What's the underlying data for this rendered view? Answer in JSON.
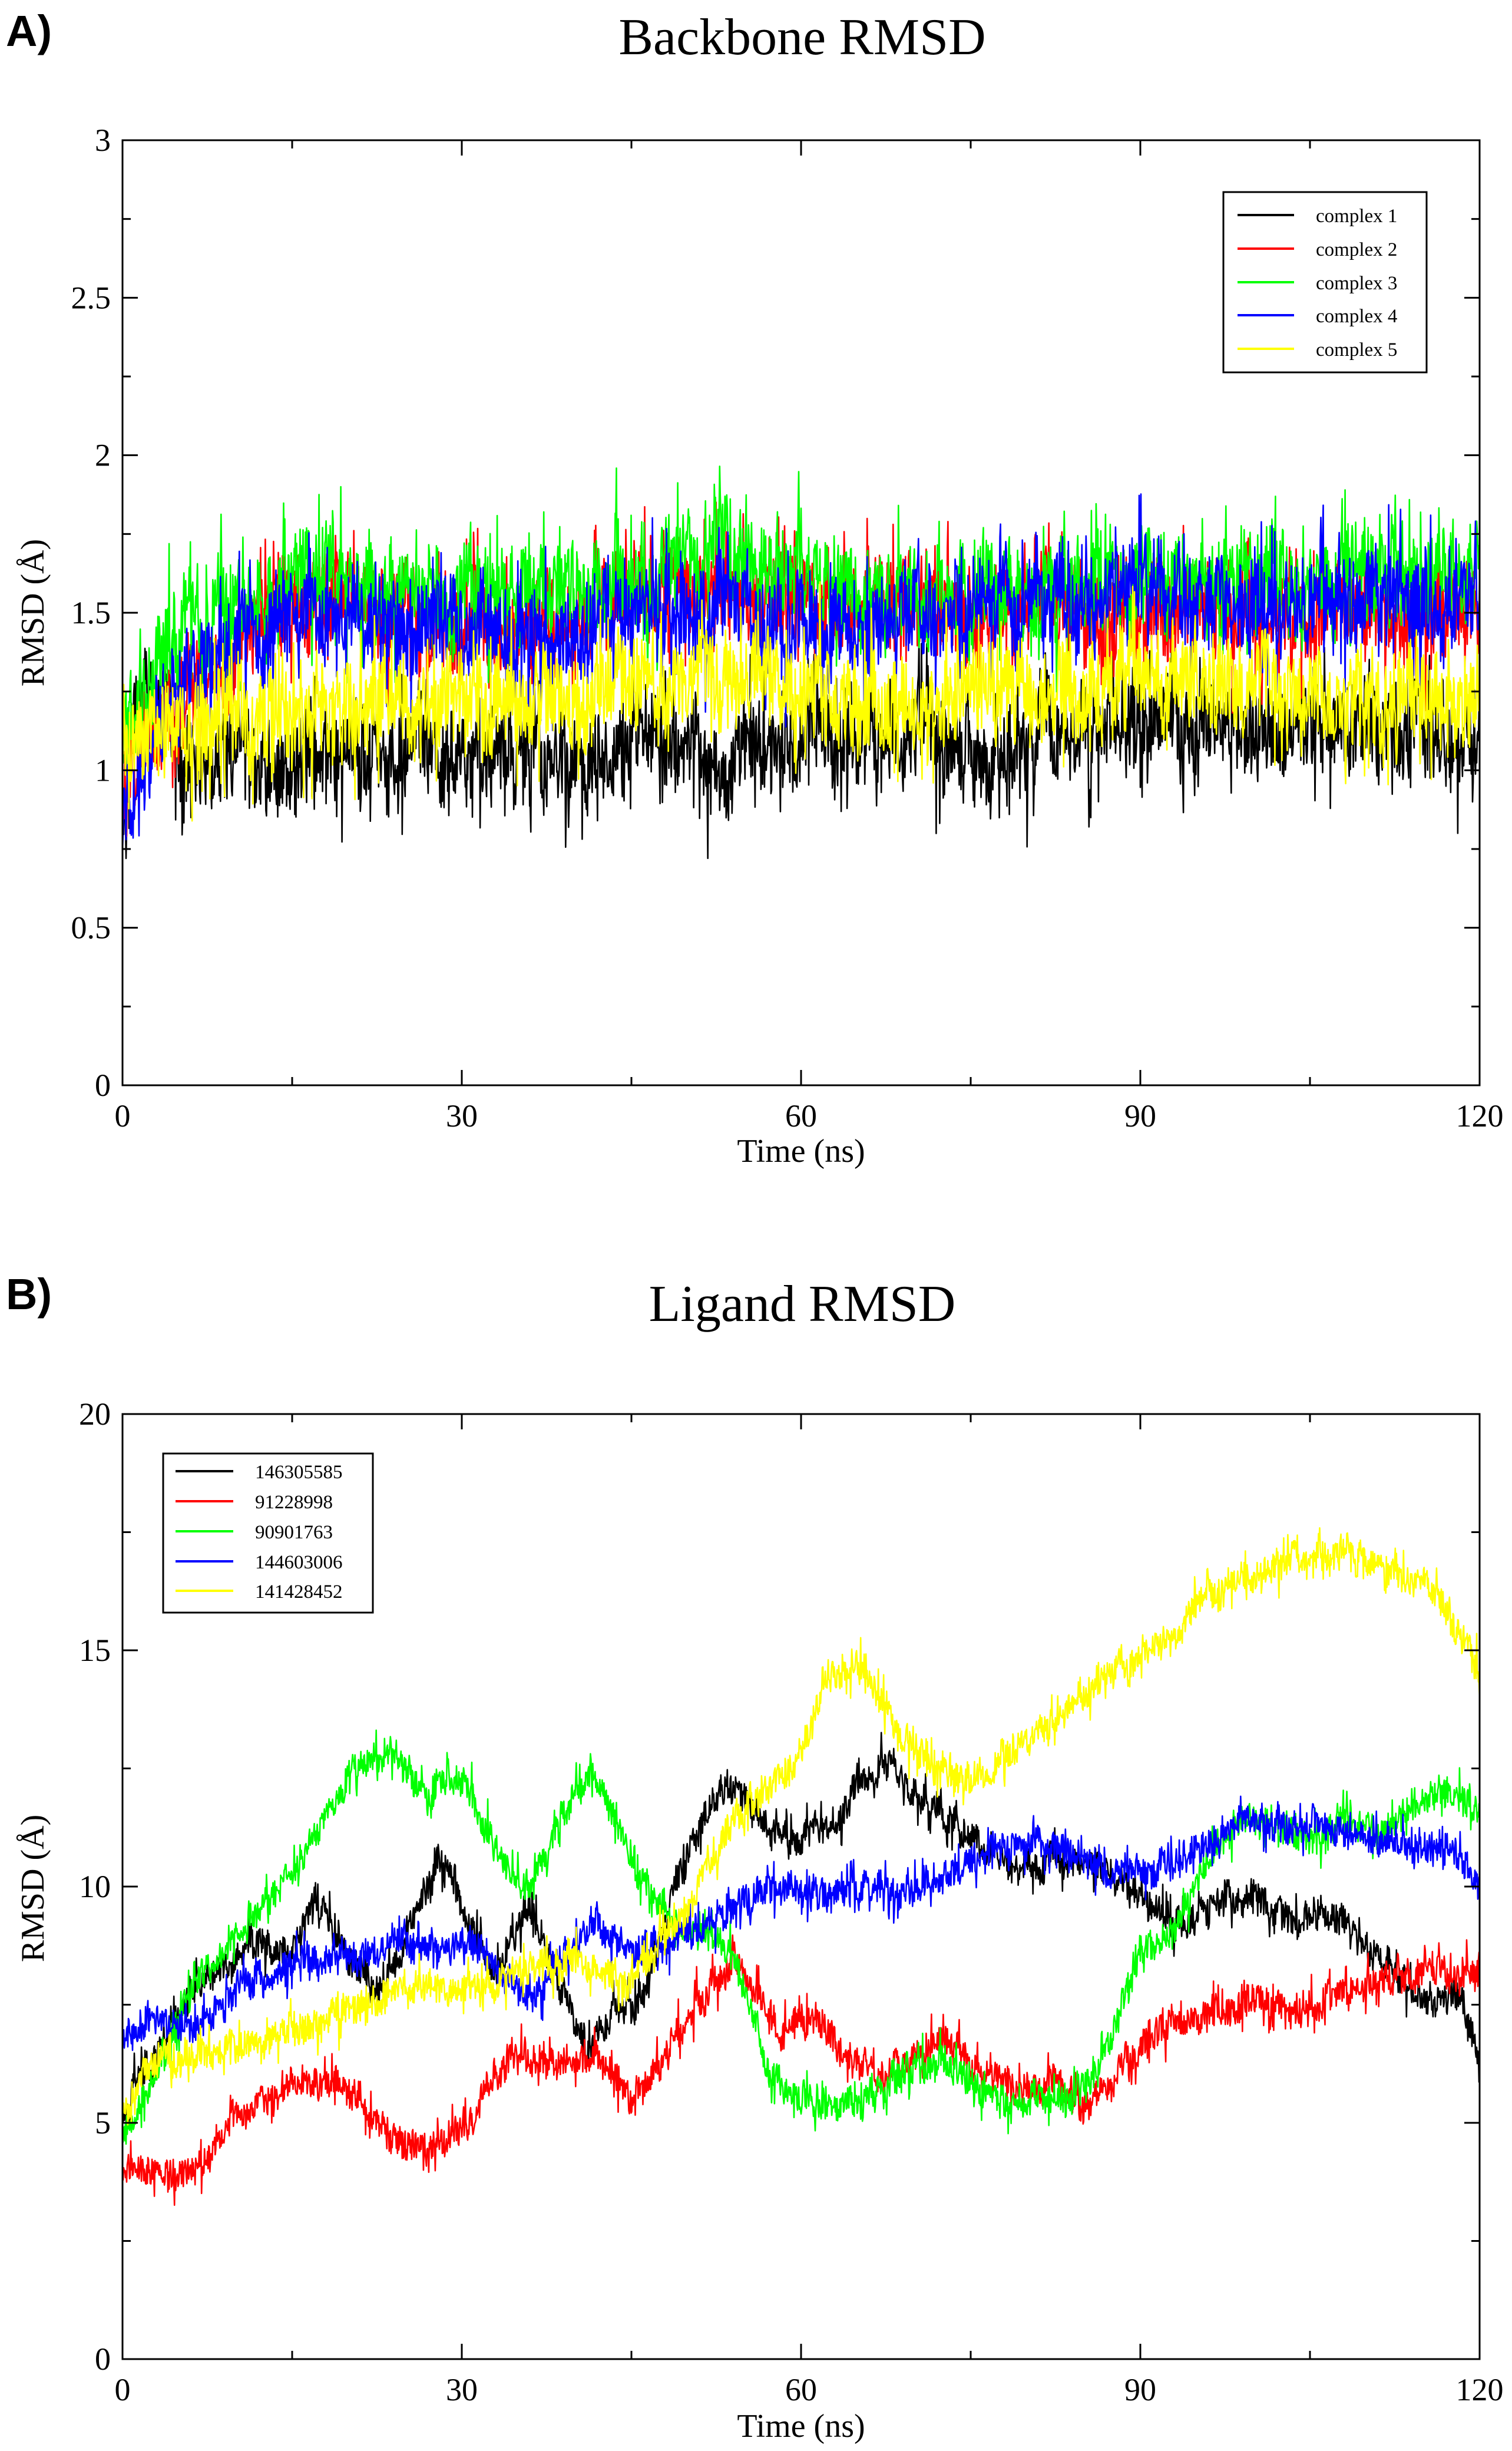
{
  "colors": {
    "black": "#000000",
    "red": "#ff0000",
    "green": "#00ff00",
    "blue": "#0000ff",
    "yellow": "#ffff00"
  },
  "chart_data": [
    {
      "panel_label": "A)",
      "type": "line",
      "title": "Backbone RMSD",
      "xlabel": "Time (ns)",
      "ylabel": "RMSD (Å)",
      "xlim": [
        0,
        120
      ],
      "ylim": [
        0,
        3
      ],
      "x_ticks": [
        0,
        30,
        60,
        90,
        120
      ],
      "y_ticks": [
        0,
        0.5,
        1,
        1.5,
        2,
        2.5,
        3
      ],
      "y_tick_labels": [
        "0",
        "0.5",
        "1",
        "1.5",
        "2",
        "2.5",
        "3"
      ],
      "legend_position": "top-right",
      "noise_amplitude": 0.32,
      "series": [
        {
          "name": "complex 1",
          "color": "#000000",
          "x": [
            0,
            1,
            2,
            3,
            5,
            8,
            10,
            15,
            20,
            25,
            30,
            35,
            40,
            45,
            50,
            53,
            55,
            60,
            65,
            70,
            75,
            80,
            85,
            90,
            95,
            100,
            105,
            110,
            115,
            120
          ],
          "y": [
            0.78,
            1.15,
            1.35,
            1.2,
            1.05,
            1.02,
            1.05,
            1.02,
            1.05,
            1.06,
            1.05,
            1.04,
            1.06,
            1.08,
            1.1,
            1.0,
            1.08,
            1.1,
            1.1,
            1.1,
            1.05,
            1.1,
            1.13,
            1.15,
            1.15,
            1.13,
            1.12,
            1.1,
            1.12,
            1.1
          ]
        },
        {
          "name": "complex 2",
          "color": "#ff0000",
          "x": [
            0,
            2,
            4,
            6,
            10,
            15,
            20,
            25,
            30,
            35,
            40,
            45,
            50,
            55,
            60,
            65,
            70,
            75,
            80,
            85,
            90,
            95,
            100,
            105,
            110,
            115,
            120
          ],
          "y": [
            0.95,
            1.1,
            1.2,
            1.3,
            1.4,
            1.5,
            1.55,
            1.5,
            1.45,
            1.45,
            1.5,
            1.55,
            1.6,
            1.55,
            1.55,
            1.5,
            1.55,
            1.5,
            1.5,
            1.5,
            1.5,
            1.5,
            1.5,
            1.5,
            1.5,
            1.48,
            1.5
          ]
        },
        {
          "name": "complex 3",
          "color": "#00ff00",
          "x": [
            0,
            2,
            4,
            6,
            10,
            15,
            18,
            20,
            25,
            30,
            35,
            40,
            45,
            50,
            52,
            55,
            60,
            65,
            70,
            75,
            80,
            85,
            90,
            95,
            100,
            105,
            110,
            115,
            120
          ],
          "y": [
            1.1,
            1.25,
            1.4,
            1.45,
            1.5,
            1.6,
            1.65,
            1.6,
            1.55,
            1.55,
            1.55,
            1.55,
            1.6,
            1.65,
            1.75,
            1.65,
            1.6,
            1.55,
            1.55,
            1.55,
            1.55,
            1.6,
            1.6,
            1.6,
            1.6,
            1.6,
            1.62,
            1.62,
            1.65
          ]
        },
        {
          "name": "complex 4",
          "color": "#0000ff",
          "x": [
            0,
            1,
            3,
            5,
            8,
            12,
            15,
            20,
            25,
            30,
            35,
            40,
            45,
            50,
            55,
            60,
            65,
            70,
            75,
            80,
            85,
            90,
            95,
            100,
            105,
            110,
            115,
            120
          ],
          "y": [
            0.8,
            0.9,
            1.05,
            1.2,
            1.35,
            1.45,
            1.5,
            1.5,
            1.45,
            1.45,
            1.4,
            1.45,
            1.5,
            1.5,
            1.5,
            1.45,
            1.45,
            1.5,
            1.5,
            1.55,
            1.55,
            1.6,
            1.55,
            1.5,
            1.55,
            1.55,
            1.55,
            1.55
          ]
        },
        {
          "name": "complex 5",
          "color": "#ffff00",
          "x": [
            0,
            2,
            5,
            10,
            15,
            20,
            25,
            30,
            35,
            40,
            45,
            50,
            55,
            60,
            65,
            70,
            75,
            80,
            85,
            90,
            95,
            100,
            105,
            110,
            115,
            120
          ],
          "y": [
            1.05,
            1.1,
            1.15,
            1.18,
            1.2,
            1.2,
            1.22,
            1.22,
            1.22,
            1.25,
            1.27,
            1.28,
            1.28,
            1.28,
            1.2,
            1.22,
            1.25,
            1.25,
            1.25,
            1.28,
            1.28,
            1.27,
            1.25,
            1.22,
            1.22,
            1.22
          ]
        }
      ]
    },
    {
      "panel_label": "B)",
      "type": "line",
      "title": "Ligand RMSD",
      "xlabel": "Time (ns)",
      "ylabel": "RMSD (Å)",
      "xlim": [
        0,
        120
      ],
      "ylim": [
        0,
        20
      ],
      "x_ticks": [
        0,
        30,
        60,
        90,
        120
      ],
      "y_ticks": [
        0,
        5,
        10,
        15,
        20
      ],
      "y_tick_labels": [
        "0",
        "5",
        "10",
        "15",
        "20"
      ],
      "legend_position": "top-left",
      "noise_amplitude": 0.75,
      "series": [
        {
          "name": "146305585",
          "color": "#000000",
          "x": [
            0,
            3,
            6,
            9,
            12,
            15,
            17,
            20,
            23,
            26,
            28,
            30,
            33,
            36,
            39,
            41,
            43,
            46,
            49,
            52,
            54,
            57,
            60,
            63,
            66,
            68,
            70,
            73,
            76,
            79,
            82,
            85,
            88,
            91,
            94,
            97,
            100,
            103,
            106,
            109,
            112,
            115,
            118,
            120
          ],
          "y": [
            5.2,
            6.5,
            7.8,
            8.3,
            8.8,
            8.5,
            9.8,
            8.4,
            7.8,
            9.5,
            10.5,
            9.6,
            8.2,
            9.5,
            7.6,
            6.5,
            7.2,
            7.6,
            10.2,
            11.8,
            12.2,
            11.2,
            11.0,
            11.5,
            12.3,
            12.8,
            12.0,
            11.3,
            10.8,
            10.3,
            10.5,
            10.6,
            10.2,
            9.6,
            9.0,
            9.6,
            9.9,
            9.2,
            9.5,
            9.0,
            8.4,
            7.5,
            7.8,
            6.4
          ]
        },
        {
          "name": "91228998",
          "color": "#ff0000",
          "x": [
            0,
            3,
            6,
            9,
            12,
            15,
            18,
            21,
            24,
            27,
            30,
            33,
            36,
            39,
            42,
            45,
            48,
            51,
            54,
            56,
            58,
            61,
            64,
            67,
            70,
            73,
            76,
            79,
            82,
            85,
            88,
            91,
            94,
            97,
            100,
            103,
            106,
            109,
            112,
            115,
            118,
            120
          ],
          "y": [
            4.0,
            3.9,
            3.8,
            4.8,
            5.5,
            5.8,
            6.0,
            5.5,
            4.6,
            4.5,
            4.8,
            6.2,
            6.5,
            6.2,
            6.4,
            5.5,
            6.5,
            7.5,
            8.3,
            7.8,
            7.0,
            7.2,
            6.3,
            6.0,
            6.4,
            6.7,
            6.2,
            5.6,
            5.8,
            5.4,
            6.0,
            6.8,
            7.2,
            7.3,
            7.6,
            7.3,
            7.6,
            7.9,
            8.0,
            8.3,
            8.2,
            8.3
          ]
        },
        {
          "name": "90901763",
          "color": "#00ff00",
          "x": [
            0,
            3,
            6,
            9,
            12,
            15,
            18,
            21,
            24,
            27,
            30,
            33,
            36,
            39,
            42,
            45,
            48,
            51,
            54,
            57,
            60,
            63,
            66,
            69,
            72,
            75,
            78,
            81,
            84,
            87,
            90,
            93,
            96,
            99,
            102,
            105,
            108,
            111,
            114,
            117,
            120
          ],
          "y": [
            4.6,
            6.0,
            7.8,
            8.6,
            9.5,
            10.2,
            11.5,
            12.6,
            12.8,
            12.0,
            12.3,
            10.8,
            10.0,
            11.6,
            12.4,
            10.5,
            9.5,
            9.0,
            8.6,
            6.2,
            5.5,
            5.3,
            5.5,
            6.0,
            6.3,
            5.8,
            5.3,
            5.6,
            5.4,
            6.5,
            8.5,
            9.0,
            10.5,
            11.5,
            11.2,
            11.0,
            11.4,
            11.0,
            11.6,
            12.0,
            11.7
          ]
        },
        {
          "name": "144603006",
          "color": "#0000ff",
          "x": [
            0,
            3,
            6,
            9,
            12,
            15,
            18,
            21,
            24,
            27,
            30,
            33,
            36,
            39,
            42,
            45,
            48,
            51,
            54,
            57,
            60,
            63,
            66,
            69,
            72,
            75,
            78,
            81,
            84,
            87,
            90,
            93,
            96,
            99,
            102,
            105,
            108,
            111,
            114,
            117,
            120
          ],
          "y": [
            6.8,
            7.2,
            7.0,
            7.6,
            8.0,
            8.3,
            8.5,
            8.5,
            8.8,
            8.6,
            8.8,
            8.3,
            7.6,
            8.5,
            9.2,
            8.6,
            8.8,
            9.2,
            9.5,
            10.0,
            9.9,
            9.8,
            9.9,
            9.8,
            10.2,
            10.5,
            10.8,
            10.9,
            10.7,
            10.4,
            10.3,
            10.6,
            11.0,
            11.5,
            11.4,
            11.3,
            11.2,
            11.0,
            10.8,
            10.9,
            10.1
          ]
        },
        {
          "name": "141428452",
          "color": "#ffff00",
          "x": [
            0,
            3,
            6,
            9,
            12,
            15,
            18,
            21,
            24,
            27,
            30,
            33,
            36,
            39,
            42,
            45,
            48,
            51,
            54,
            57,
            60,
            62,
            64,
            66,
            69,
            72,
            75,
            78,
            81,
            84,
            87,
            90,
            93,
            96,
            99,
            102,
            105,
            108,
            111,
            114,
            117,
            120
          ],
          "y": [
            5.2,
            6.5,
            6.3,
            6.5,
            6.8,
            7.0,
            7.2,
            7.5,
            7.8,
            8.0,
            7.8,
            8.0,
            8.2,
            8.5,
            8.2,
            7.9,
            9.0,
            10.0,
            11.5,
            12.0,
            12.8,
            14.3,
            14.8,
            14.5,
            13.0,
            12.5,
            12.2,
            12.8,
            13.3,
            13.8,
            14.5,
            15.0,
            15.3,
            16.2,
            16.5,
            16.8,
            17.0,
            17.0,
            16.8,
            16.5,
            16.0,
            14.5
          ]
        }
      ]
    }
  ]
}
